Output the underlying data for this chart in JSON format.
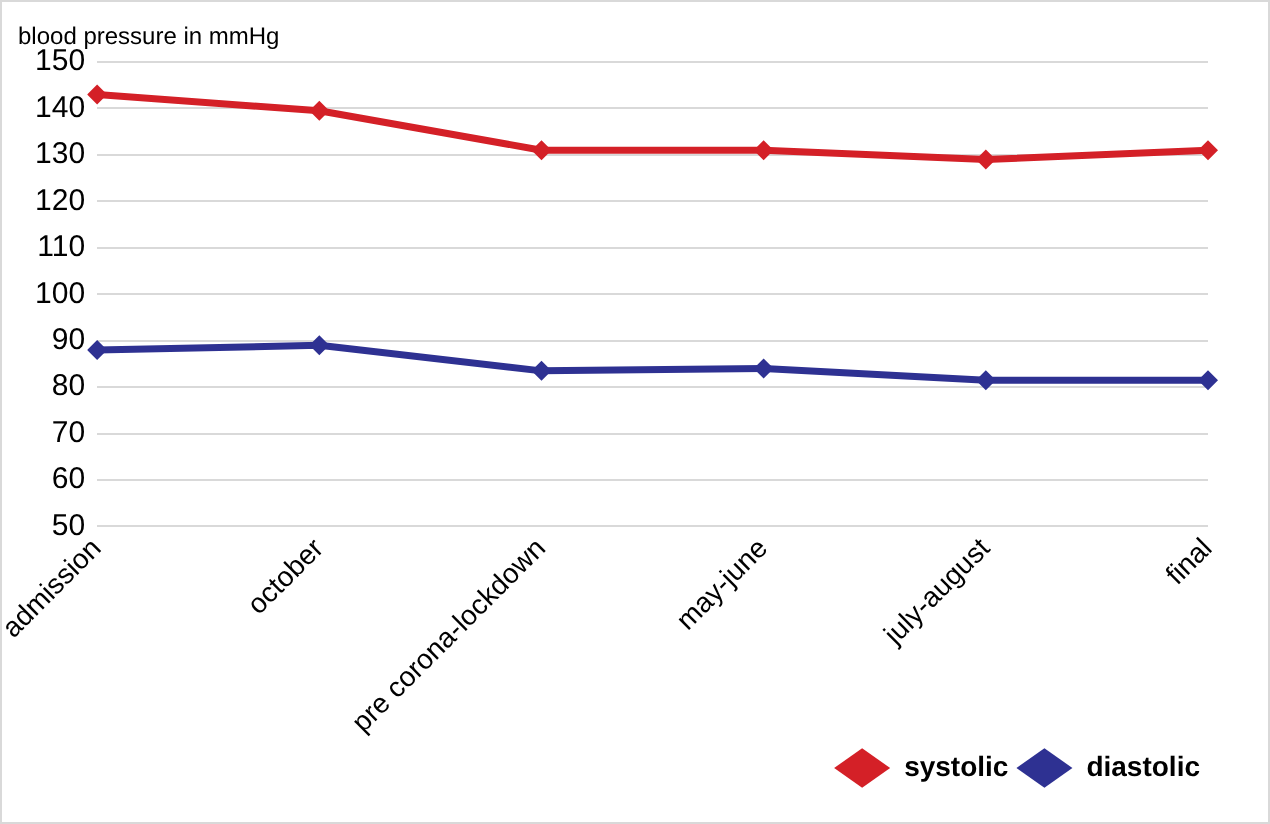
{
  "chart_data": {
    "type": "line",
    "ylabel": "blood pressure in mmHg",
    "categories": [
      "admission",
      "october",
      "pre corona-lockdown",
      "may-june",
      "july-august",
      "final"
    ],
    "series": [
      {
        "name": "systolic",
        "color": "#d42027",
        "values": [
          143,
          139.5,
          131,
          131,
          129,
          131
        ]
      },
      {
        "name": "diastolic",
        "color": "#2e3192",
        "values": [
          88,
          89,
          83.5,
          84,
          81.5,
          81.5
        ]
      }
    ],
    "ylim": [
      50,
      150
    ],
    "yticks": [
      50,
      60,
      70,
      80,
      90,
      100,
      110,
      120,
      130,
      140,
      150
    ],
    "grid": "y",
    "legend": "bottom right",
    "marker": "diamond",
    "line_style": "solid"
  }
}
